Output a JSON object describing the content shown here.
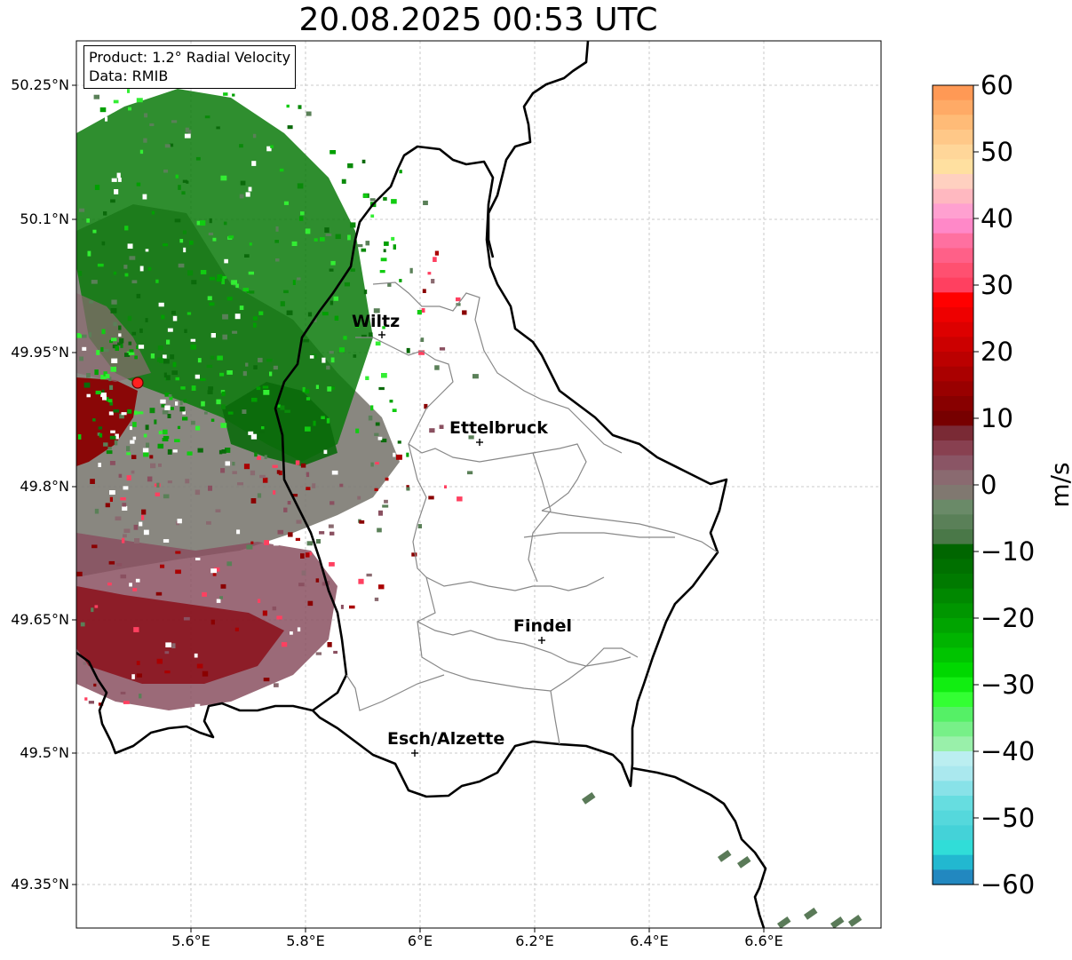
{
  "header": {
    "title": "20.08.2025 00:53 UTC"
  },
  "info": {
    "product": "Product: 1.2° Radial Velocity",
    "data": "Data: RMIB"
  },
  "axes": {
    "lat_ticks": [
      "50.25°N",
      "50.1°N",
      "49.95°N",
      "49.8°N",
      "49.65°N",
      "49.5°N",
      "49.35°N"
    ],
    "lon_ticks": [
      "5.6°E",
      "5.8°E",
      "6°E",
      "6.2°E",
      "6.4°E",
      "6.6°E"
    ]
  },
  "cities": [
    {
      "name": "Wiltz"
    },
    {
      "name": "Ettelbruck"
    },
    {
      "name": "Findel"
    },
    {
      "name": "Esch/Alzette"
    }
  ],
  "colorbar": {
    "unit": "m/s",
    "ticks": [
      "60",
      "50",
      "40",
      "30",
      "20",
      "10",
      "0",
      "−10",
      "−20",
      "−30",
      "−40",
      "−50",
      "−60"
    ],
    "min": -60,
    "max": 60,
    "colors": [
      "#ff9955",
      "#ffaa66",
      "#ffbb77",
      "#ffc888",
      "#ffd699",
      "#ffe0a0",
      "#ffd0c0",
      "#ffb8c0",
      "#ffa0d0",
      "#ff88c8",
      "#ff70a0",
      "#ff6088",
      "#ff5070",
      "#ff4060",
      "#ff0000",
      "#ee0000",
      "#dd0000",
      "#cc0000",
      "#bb0000",
      "#aa0000",
      "#990000",
      "#880000",
      "#770000",
      "#7a2a35",
      "#884050",
      "#8a5565",
      "#8a6a70",
      "#807870",
      "#6a8a68",
      "#5a8058",
      "#4a7848",
      "#006600",
      "#007000",
      "#007a00",
      "#008800",
      "#009600",
      "#00a400",
      "#00b400",
      "#00c400",
      "#00d800",
      "#11ee11",
      "#33ff33",
      "#55f066",
      "#77f088",
      "#99f0aa",
      "#bbeef0",
      "#aae8ee",
      "#88e2e8",
      "#66dde0",
      "#55d8dc",
      "#44d2d8",
      "#30ddd8",
      "#22b8d0",
      "#2288c0"
    ]
  },
  "radar": {
    "site_marker": "red-dot"
  }
}
